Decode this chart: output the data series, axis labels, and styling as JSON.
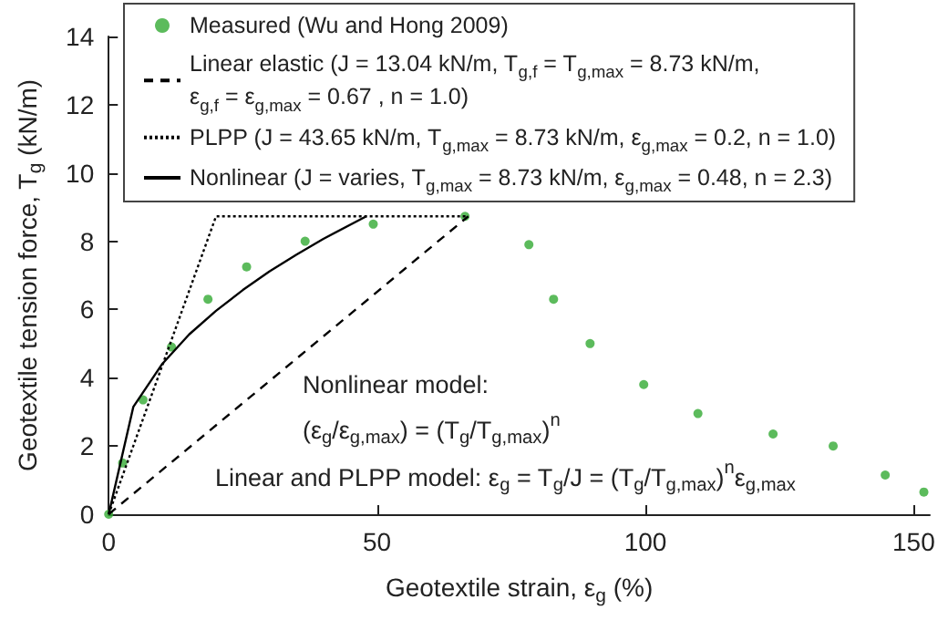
{
  "chart_data": {
    "type": "line",
    "xlabel": "Geotextile strain, ε$_{g}$ (%)",
    "ylabel": "Geotextile tension force, T$_{g}$ (kN/m)",
    "xlim": [
      0,
      153
    ],
    "xticks": [
      0,
      50,
      100,
      150
    ],
    "ylim": [
      0,
      14
    ],
    "yticks": [
      0,
      2,
      4,
      6,
      8,
      10,
      12,
      14
    ],
    "grid": false,
    "legend": "top",
    "annotations": [
      "Nonlinear model:",
      "(ε$_{g}$/ε$_{g,max}$) = (T$_{g}$/T$_{g,max}$)$^{n}$",
      "Linear and PLPP model: ε$_{g}$ = T$_{g}$/J = (T$_{g}$/T$_{g,max}$)$^{n}$ε$_{g,max}$"
    ],
    "series": [
      {
        "name": "Measured (Wu and Hong 2009)",
        "type": "scatter",
        "color": "#33aa33",
        "marker": "circle",
        "x": [
          0,
          2.6,
          6.4,
          11.7,
          18.5,
          25.7,
          36.6,
          49.3,
          66.4,
          78.3,
          82.9,
          89.7,
          99.7,
          109.8,
          123.8,
          135,
          144.7,
          151.9
        ],
        "values": [
          0,
          1.5,
          3.35,
          4.9,
          6.3,
          7.25,
          8.0,
          8.5,
          8.73,
          7.9,
          6.3,
          5.0,
          3.8,
          2.95,
          2.35,
          2.0,
          1.15,
          0.65
        ]
      },
      {
        "name": "Linear elastic (J = 13.04 kN/m, T$_{g,f}$ = T$_{g,max}$ = 8.73 kN/m, ε$_{g,f}$ = ε$_{g,max}$ = 0.67 , n = 1.0)",
        "type": "line",
        "color": "#000000",
        "marker": "none",
        "line_style": "dashed",
        "x": [
          0,
          67
        ],
        "values": [
          0,
          8.73
        ]
      },
      {
        "name": "PLPP (J = 43.65 kN/m, T$_{g,max}$ = 8.73 kN/m, ε$_{g,max}$ = 0.2, n = 1.0)",
        "type": "line",
        "color": "#000000",
        "marker": "none",
        "line_style": "dotted",
        "x": [
          0,
          20,
          67
        ],
        "values": [
          0,
          8.73,
          8.73
        ]
      },
      {
        "name": "Nonlinear (J = varies, T$_{g,max}$ = 8.73 kN/m, ε$_{g,max}$ = 0.48, n = 2.3)",
        "type": "line",
        "color": "#000000",
        "marker": "none",
        "line_style": "solid",
        "x": [
          0,
          4.6,
          10,
          15,
          20,
          25,
          30,
          35,
          40,
          48
        ],
        "values": [
          0,
          3.15,
          4.41,
          5.27,
          5.96,
          6.57,
          7.12,
          7.61,
          8.07,
          8.73
        ]
      }
    ]
  }
}
